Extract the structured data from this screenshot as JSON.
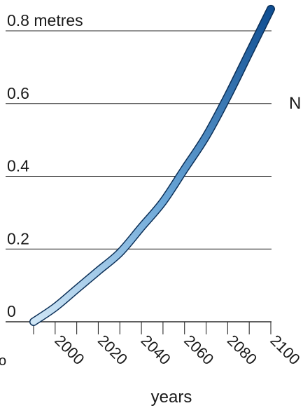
{
  "chart_data": {
    "type": "line",
    "title": "",
    "xlabel": "years",
    "ylabel": "",
    "x_ticks": [
      "2000",
      "2020",
      "2040",
      "2060",
      "2080",
      "2100"
    ],
    "y_ticks": [
      "0",
      "0.2",
      "0.4",
      "0.6",
      "0.8 metres"
    ],
    "xlim": [
      1990,
      2100
    ],
    "ylim": [
      0,
      0.8
    ],
    "grid": "horizontal",
    "series": [
      {
        "x": [
          1990,
          2000,
          2010,
          2020,
          2030,
          2040,
          2050,
          2060,
          2070,
          2080,
          2090,
          2100
        ],
        "y": [
          0.0,
          0.04,
          0.09,
          0.14,
          0.19,
          0.26,
          0.33,
          0.42,
          0.51,
          0.62,
          0.74,
          0.86
        ]
      }
    ],
    "edge_labels": {
      "right": "N",
      "left": "o"
    },
    "colors": {
      "line_start": "#cfe6f6",
      "line_mid": "#6aa6d7",
      "line_end": "#0f4e92",
      "outline": "#0b2f57",
      "grid": "#2b2b2b"
    }
  }
}
